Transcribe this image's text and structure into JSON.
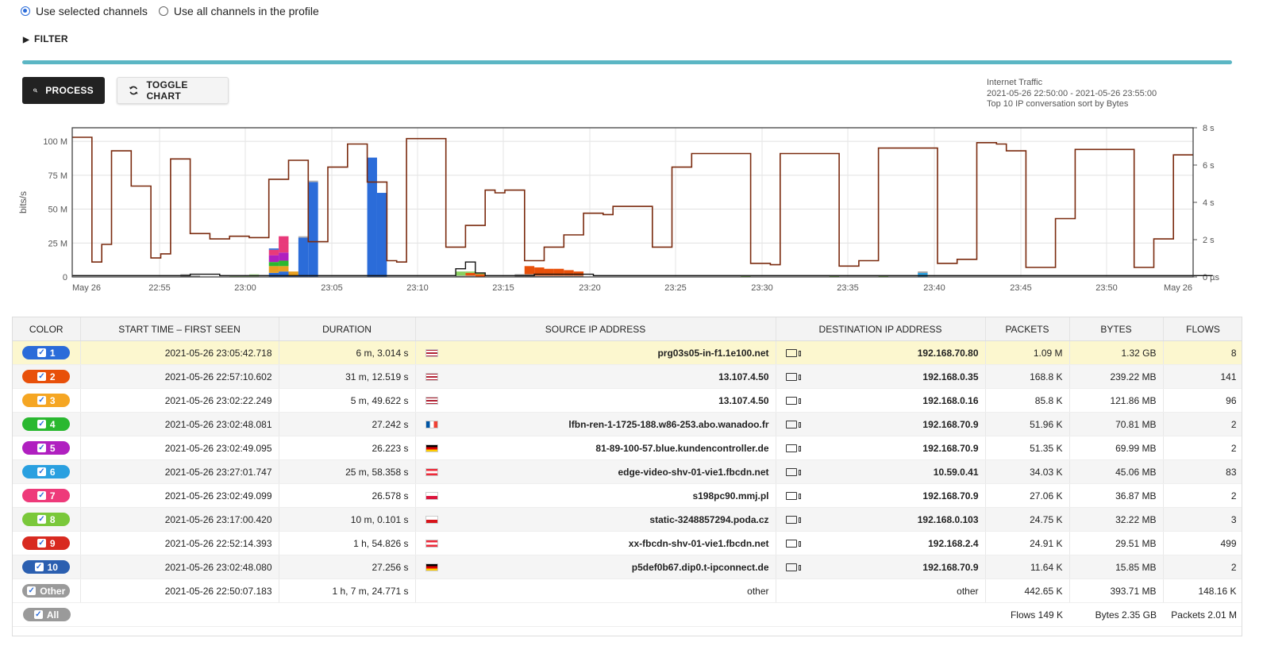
{
  "channels": {
    "selected_label": "Use selected channels",
    "all_label": "Use all channels in the profile"
  },
  "filter_label": "FILTER",
  "buttons": {
    "process": "PROCESS",
    "toggle_chart": "TOGGLE CHART"
  },
  "chart_info": {
    "line1": "Internet Traffic",
    "line2": "2021-05-26 22:50:00 - 2021-05-26 23:55:00",
    "line3": "Top 10 IP conversation sort by Bytes"
  },
  "chart_data": {
    "type": "bar",
    "title": "",
    "ylabel": "bits/s",
    "y_ticks": [
      "0",
      "25 M",
      "50 M",
      "75 M",
      "100 M"
    ],
    "y2_ticks": [
      "0 µs",
      "2 s",
      "4 s",
      "6 s",
      "8 s"
    ],
    "ylim": [
      0,
      110
    ],
    "y2lim": [
      0,
      8
    ],
    "x_ticks": [
      "May 26",
      "22:55",
      "23:00",
      "23:05",
      "23:10",
      "23:15",
      "23:20",
      "23:25",
      "23:30",
      "23:35",
      "23:40",
      "23:45",
      "23:50",
      "May 26"
    ],
    "bars": [
      {
        "i": 11,
        "segs": [
          [
            2,
            "#9a9a9a"
          ]
        ]
      },
      {
        "i": 12,
        "segs": [
          [
            1,
            "#9a9a9a"
          ]
        ]
      },
      {
        "i": 16,
        "segs": [
          [
            1,
            "#b6e8a0"
          ]
        ]
      },
      {
        "i": 17,
        "segs": [
          [
            1,
            "#b6e8a0"
          ]
        ]
      },
      {
        "i": 18,
        "segs": [
          [
            2,
            "#b6e8a0"
          ]
        ]
      },
      {
        "i": 20,
        "segs": [
          [
            3,
            "#2b6cd9"
          ],
          [
            5,
            "#e8a020"
          ],
          [
            3,
            "#2ab830"
          ],
          [
            5,
            "#b020c0"
          ],
          [
            4,
            "#e83a7a"
          ],
          [
            1,
            "#2b6cd9"
          ]
        ]
      },
      {
        "i": 21,
        "segs": [
          [
            4,
            "#2b6cd9"
          ],
          [
            4,
            "#e8a020"
          ],
          [
            4,
            "#2ab830"
          ],
          [
            6,
            "#b020c0"
          ],
          [
            6,
            "#e83a7a"
          ],
          [
            6,
            "#e83a7a"
          ]
        ]
      },
      {
        "i": 22,
        "segs": [
          [
            1,
            "#2b6cd9"
          ],
          [
            3,
            "#e8a020"
          ]
        ]
      },
      {
        "i": 23,
        "segs": [
          [
            29,
            "#2b6cd9"
          ],
          [
            1,
            "#b0b0b0"
          ]
        ]
      },
      {
        "i": 24,
        "segs": [
          [
            70,
            "#2b6cd9"
          ],
          [
            1,
            "#b0b0b0"
          ]
        ]
      },
      {
        "i": 30,
        "segs": [
          [
            88,
            "#2b6cd9"
          ]
        ]
      },
      {
        "i": 31,
        "segs": [
          [
            62,
            "#2b6cd9"
          ]
        ]
      },
      {
        "i": 39,
        "segs": [
          [
            1,
            "#9a9a9a"
          ],
          [
            3,
            "#8ad060"
          ]
        ]
      },
      {
        "i": 40,
        "segs": [
          [
            1,
            "#9a9a9a"
          ],
          [
            2,
            "#e8500a"
          ],
          [
            1,
            "#8ad060"
          ]
        ]
      },
      {
        "i": 41,
        "segs": [
          [
            2,
            "#e8500a"
          ],
          [
            1,
            "#8ad060"
          ]
        ]
      },
      {
        "i": 45,
        "segs": [
          [
            2,
            "#9a9a9a"
          ]
        ]
      },
      {
        "i": 46,
        "segs": [
          [
            2,
            "#9a9a9a"
          ],
          [
            6,
            "#e8500a"
          ]
        ]
      },
      {
        "i": 47,
        "segs": [
          [
            1,
            "#9a9a9a"
          ],
          [
            6,
            "#e8500a"
          ]
        ]
      },
      {
        "i": 48,
        "segs": [
          [
            1,
            "#9a9a9a"
          ],
          [
            5,
            "#e8500a"
          ]
        ]
      },
      {
        "i": 49,
        "segs": [
          [
            1,
            "#9a9a9a"
          ],
          [
            5,
            "#e8500a"
          ]
        ]
      },
      {
        "i": 50,
        "segs": [
          [
            1,
            "#9a9a9a"
          ],
          [
            4,
            "#e8500a"
          ]
        ]
      },
      {
        "i": 51,
        "segs": [
          [
            1,
            "#9a9a9a"
          ],
          [
            3,
            "#e8500a"
          ]
        ]
      },
      {
        "i": 68,
        "segs": [
          [
            1,
            "#8ad060"
          ]
        ]
      },
      {
        "i": 77,
        "segs": [
          [
            1,
            "#8ad060"
          ]
        ]
      },
      {
        "i": 82,
        "segs": [
          [
            1,
            "#8ad060"
          ]
        ]
      },
      {
        "i": 86,
        "segs": [
          [
            3,
            "#2aa0e0"
          ],
          [
            1,
            "#9a9a9a"
          ]
        ]
      }
    ],
    "line_brown": [
      103,
      103,
      11,
      24,
      93,
      93,
      67,
      67,
      14,
      17,
      87,
      87,
      32,
      32,
      28,
      28,
      30,
      30,
      29,
      29,
      72,
      72,
      86,
      86,
      26,
      26,
      81,
      81,
      98,
      98,
      70,
      70,
      12,
      11,
      102,
      102,
      102,
      102,
      22,
      22,
      38,
      38,
      64,
      62,
      64,
      64,
      12,
      12,
      22,
      22,
      31,
      31,
      47,
      47,
      46,
      52,
      52,
      52,
      52,
      22,
      22,
      81,
      81,
      91,
      91,
      91,
      91,
      91,
      91,
      10,
      10,
      9,
      91,
      91,
      91,
      91,
      91,
      91,
      8,
      8,
      12,
      12,
      95,
      95,
      95,
      95,
      95,
      95,
      10,
      10,
      13,
      13,
      99,
      99,
      98,
      93,
      93,
      7,
      7,
      7,
      43,
      43,
      94,
      94,
      94,
      94,
      94,
      94,
      7,
      7,
      28,
      28,
      90,
      90
    ],
    "line_black": [
      1,
      1,
      1,
      1,
      1,
      1,
      1,
      1,
      1,
      1,
      1,
      1,
      2,
      2,
      2,
      1,
      1,
      1,
      1,
      1,
      1,
      1,
      1,
      1,
      1,
      1,
      1,
      1,
      1,
      1,
      1,
      1,
      1,
      1,
      1,
      1,
      1,
      1,
      1,
      6,
      11,
      3,
      1,
      1,
      1,
      1,
      1,
      2,
      2,
      2,
      2,
      2,
      2,
      1,
      1,
      1,
      1,
      1,
      1,
      1,
      1,
      1,
      1,
      1,
      1,
      1,
      1,
      1,
      1,
      1,
      1,
      1,
      1,
      1,
      1,
      1,
      1,
      1,
      1,
      1,
      1,
      1,
      1,
      1,
      1,
      1,
      1,
      1,
      1,
      1,
      1,
      1,
      1,
      1,
      1,
      1,
      1,
      1,
      1,
      1,
      1,
      1,
      1,
      1,
      1,
      1,
      1,
      1,
      1,
      1,
      1,
      1,
      1,
      1,
      1,
      1
    ]
  },
  "table": {
    "headers": [
      "COLOR",
      "START TIME – FIRST SEEN",
      "DURATION",
      "SOURCE IP ADDRESS",
      "DESTINATION IP ADDRESS",
      "PACKETS",
      "BYTES",
      "FLOWS"
    ],
    "rows": [
      {
        "n": "1",
        "color": "#2b6cd9",
        "start": "2021-05-26 23:05:42.718",
        "duration": "6 m, 3.014 s",
        "flag": "us",
        "src": "prg03s05-in-f1.1e100.net",
        "dst": "192.168.70.80",
        "packets": "1.09 M",
        "bytes": "1.32 GB",
        "flows": "8"
      },
      {
        "n": "2",
        "color": "#e8500a",
        "start": "2021-05-26 22:57:10.602",
        "duration": "31 m, 12.519 s",
        "flag": "us",
        "src": "13.107.4.50",
        "dst": "192.168.0.35",
        "packets": "168.8 K",
        "bytes": "239.22 MB",
        "flows": "141"
      },
      {
        "n": "3",
        "color": "#f5a623",
        "start": "2021-05-26 23:02:22.249",
        "duration": "5 m, 49.622 s",
        "flag": "us",
        "src": "13.107.4.50",
        "dst": "192.168.0.16",
        "packets": "85.8 K",
        "bytes": "121.86 MB",
        "flows": "96"
      },
      {
        "n": "4",
        "color": "#2ab830",
        "start": "2021-05-26 23:02:48.081",
        "duration": "27.242 s",
        "flag": "fr",
        "src": "lfbn-ren-1-1725-188.w86-253.abo.wanadoo.fr",
        "dst": "192.168.70.9",
        "packets": "51.96 K",
        "bytes": "70.81 MB",
        "flows": "2"
      },
      {
        "n": "5",
        "color": "#b020c0",
        "start": "2021-05-26 23:02:49.095",
        "duration": "26.223 s",
        "flag": "de",
        "src": "81-89-100-57.blue.kundencontroller.de",
        "dst": "192.168.70.9",
        "packets": "51.35 K",
        "bytes": "69.99 MB",
        "flows": "2"
      },
      {
        "n": "6",
        "color": "#2aa0e0",
        "start": "2021-05-26 23:27:01.747",
        "duration": "25 m, 58.358 s",
        "flag": "at",
        "src": "edge-video-shv-01-vie1.fbcdn.net",
        "dst": "10.59.0.41",
        "packets": "34.03 K",
        "bytes": "45.06 MB",
        "flows": "83"
      },
      {
        "n": "7",
        "color": "#ee3a7a",
        "start": "2021-05-26 23:02:49.099",
        "duration": "26.578 s",
        "flag": "pl",
        "src": "s198pc90.mmj.pl",
        "dst": "192.168.70.9",
        "packets": "27.06 K",
        "bytes": "36.87 MB",
        "flows": "2"
      },
      {
        "n": "8",
        "color": "#7ac83a",
        "start": "2021-05-26 23:17:00.420",
        "duration": "10 m, 0.101 s",
        "flag": "cz",
        "src": "static-3248857294.poda.cz",
        "dst": "192.168.0.103",
        "packets": "24.75 K",
        "bytes": "32.22 MB",
        "flows": "3"
      },
      {
        "n": "9",
        "color": "#d82a20",
        "start": "2021-05-26 22:52:14.393",
        "duration": "1 h, 54.826 s",
        "flag": "at",
        "src": "xx-fbcdn-shv-01-vie1.fbcdn.net",
        "dst": "192.168.2.4",
        "packets": "24.91 K",
        "bytes": "29.51 MB",
        "flows": "499"
      },
      {
        "n": "10",
        "color": "#2b5fb0",
        "start": "2021-05-26 23:02:48.080",
        "duration": "27.256 s",
        "flag": "de",
        "src": "p5def0b67.dip0.t-ipconnect.de",
        "dst": "192.168.70.9",
        "packets": "11.64 K",
        "bytes": "15.85 MB",
        "flows": "2"
      }
    ],
    "other": {
      "label": "Other",
      "color": "#9a9a9a",
      "start": "2021-05-26 22:50:07.183",
      "duration": "1 h, 7 m, 24.771 s",
      "src": "other",
      "dst": "other",
      "packets": "442.65 K",
      "bytes": "393.71 MB",
      "flows": "148.16 K"
    },
    "footer": {
      "all_label": "All",
      "flows": "Flows 149 K",
      "bytes": "Bytes 2.35 GB",
      "packets": "Packets 2.01 M"
    }
  },
  "colors": {
    "progress": "#5bb6c4",
    "highlight_row": "#fcf7cf",
    "radio_accent": "#2b6cd9"
  },
  "progress_fraction": 1.0
}
